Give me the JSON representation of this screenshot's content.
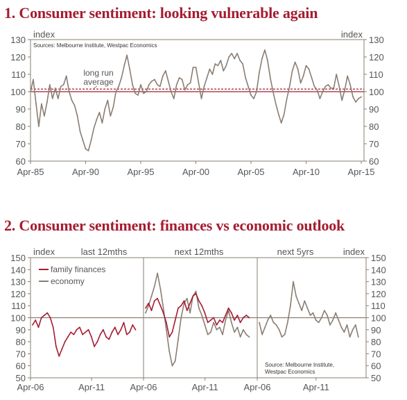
{
  "chart_data": [
    {
      "type": "line",
      "title": "1. Consumer sentiment: looking vulnerable again",
      "ylabel_left": "index",
      "ylabel_right": "index",
      "source": "Sources: Melbourne Institute, Westpac Economics",
      "ylim": [
        60,
        130
      ],
      "yticks": [
        60,
        70,
        80,
        90,
        100,
        110,
        120,
        130
      ],
      "xlim": [
        1985.25,
        2015.5
      ],
      "xticks": [
        {
          "x": 1985.25,
          "label": "Apr-85"
        },
        {
          "x": 1990.25,
          "label": "Apr-90"
        },
        {
          "x": 1995.25,
          "label": "Apr-95"
        },
        {
          "x": 2000.25,
          "label": "Apr-00"
        },
        {
          "x": 2005.25,
          "label": "Apr-05"
        },
        {
          "x": 2010.25,
          "label": "Apr-10"
        },
        {
          "x": 2015.25,
          "label": "Apr-15"
        }
      ],
      "annotation": "long run average",
      "annotation_lines": [
        "long run",
        "average"
      ],
      "reference_lines": [
        {
          "y": 100,
          "style": "solid",
          "color": "#a51c30"
        },
        {
          "y": 101.5,
          "style": "dashed",
          "color": "#a51c30"
        }
      ],
      "grid": false,
      "series": [
        {
          "color": "#8a7d72",
          "x": [
            1985.25,
            1985.5,
            1985.75,
            1986.0,
            1986.25,
            1986.5,
            1986.75,
            1987.0,
            1987.25,
            1987.5,
            1987.75,
            1988.0,
            1988.25,
            1988.5,
            1988.75,
            1989.0,
            1989.25,
            1989.5,
            1989.75,
            1990.0,
            1990.25,
            1990.5,
            1990.75,
            1991.0,
            1991.25,
            1991.5,
            1991.75,
            1992.0,
            1992.25,
            1992.5,
            1992.75,
            1993.0,
            1993.25,
            1993.5,
            1993.75,
            1994.0,
            1994.25,
            1994.5,
            1994.75,
            1995.0,
            1995.25,
            1995.5,
            1995.75,
            1996.0,
            1996.25,
            1996.5,
            1996.75,
            1997.0,
            1997.25,
            1997.5,
            1997.75,
            1998.0,
            1998.25,
            1998.5,
            1998.75,
            1999.0,
            1999.25,
            1999.5,
            1999.75,
            2000.0,
            2000.25,
            2000.5,
            2000.75,
            2001.0,
            2001.25,
            2001.5,
            2001.75,
            2002.0,
            2002.25,
            2002.5,
            2002.75,
            2003.0,
            2003.25,
            2003.5,
            2003.75,
            2004.0,
            2004.25,
            2004.5,
            2004.75,
            2005.0,
            2005.25,
            2005.5,
            2005.75,
            2006.0,
            2006.25,
            2006.5,
            2006.75,
            2007.0,
            2007.25,
            2007.5,
            2007.75,
            2008.0,
            2008.25,
            2008.5,
            2008.75,
            2009.0,
            2009.25,
            2009.5,
            2009.75,
            2010.0,
            2010.25,
            2010.5,
            2010.75,
            2011.0,
            2011.25,
            2011.5,
            2011.75,
            2012.0,
            2012.25,
            2012.5,
            2012.75,
            2013.0,
            2013.25,
            2013.5,
            2013.75,
            2014.0,
            2014.25,
            2014.5,
            2014.75,
            2015.0,
            2015.25
          ],
          "values": [
            100,
            107,
            93,
            80,
            93,
            86,
            94,
            104,
            96,
            102,
            96,
            103,
            104,
            109,
            100,
            95,
            92,
            86,
            77,
            72,
            67,
            66,
            72,
            79,
            84,
            88,
            82,
            90,
            95,
            86,
            91,
            100,
            103,
            108,
            115,
            121,
            113,
            104,
            99,
            98,
            104,
            99,
            100,
            104,
            106,
            107,
            104,
            103,
            109,
            112,
            106,
            100,
            96,
            104,
            108,
            107,
            101,
            104,
            105,
            114,
            114,
            105,
            96,
            103,
            108,
            113,
            110,
            116,
            115,
            118,
            112,
            115,
            120,
            122,
            119,
            122,
            118,
            116,
            108,
            103,
            98,
            96,
            100,
            111,
            119,
            124,
            118,
            108,
            100,
            93,
            87,
            82,
            87,
            96,
            103,
            112,
            117,
            113,
            105,
            109,
            115,
            113,
            108,
            103,
            101,
            96,
            100,
            103,
            104,
            102,
            102,
            110,
            103,
            95,
            101,
            109,
            104,
            97,
            94,
            96,
            97
          ]
        }
      ]
    },
    {
      "type": "line",
      "title": "2. Consumer sentiment: finances vs economic outlook",
      "ylabel_left": "index",
      "ylabel_right": "index",
      "source": "Source: Melbourne Institute, Westpac Economics",
      "source_lines": [
        "Source: Melbourne Institute,",
        "Westpac Economics"
      ],
      "ylim": [
        50,
        150
      ],
      "yticks": [
        50,
        60,
        70,
        80,
        90,
        100,
        110,
        120,
        130,
        140,
        150
      ],
      "reference_lines": [
        {
          "y": 100,
          "style": "solid",
          "color": "#8a7d72"
        }
      ],
      "grid": false,
      "panels": [
        {
          "label": "last 12mths",
          "xlim": [
            2006.25,
            2015.5
          ],
          "xticks": [
            {
              "x": 2006.25,
              "label": "Apr-06"
            },
            {
              "x": 2011.25,
              "label": "Apr-11"
            }
          ],
          "series": [
            {
              "name": "family finances",
              "color": "#a51c30",
              "x": [
                2006.25,
                2006.5,
                2006.75,
                2007.0,
                2007.25,
                2007.5,
                2007.75,
                2008.0,
                2008.25,
                2008.5,
                2008.75,
                2009.0,
                2009.25,
                2009.5,
                2009.75,
                2010.0,
                2010.25,
                2010.5,
                2010.75,
                2011.0,
                2011.25,
                2011.5,
                2011.75,
                2012.0,
                2012.25,
                2012.5,
                2012.75,
                2013.0,
                2013.25,
                2013.5,
                2013.75,
                2014.0,
                2014.25,
                2014.5,
                2014.75,
                2015.0
              ],
              "values": [
                94,
                98,
                92,
                100,
                102,
                104,
                100,
                92,
                76,
                68,
                74,
                80,
                84,
                88,
                86,
                90,
                92,
                86,
                88,
                90,
                84,
                76,
                80,
                86,
                90,
                84,
                82,
                88,
                92,
                86,
                90,
                96,
                86,
                88,
                94,
                90
              ]
            }
          ]
        },
        {
          "label": "next 12mths",
          "xlim": [
            2006.25,
            2015.5
          ],
          "xticks": [
            {
              "x": 2006.25,
              "label": "Apr-06"
            },
            {
              "x": 2011.25,
              "label": "Apr-11"
            }
          ],
          "series": [
            {
              "name": "family finances",
              "color": "#a51c30",
              "x": [
                2006.25,
                2006.5,
                2006.75,
                2007.0,
                2007.25,
                2007.5,
                2007.75,
                2008.0,
                2008.25,
                2008.5,
                2008.75,
                2009.0,
                2009.25,
                2009.5,
                2009.75,
                2010.0,
                2010.25,
                2010.5,
                2010.75,
                2011.0,
                2011.25,
                2011.5,
                2011.75,
                2012.0,
                2012.25,
                2012.5,
                2012.75,
                2013.0,
                2013.25,
                2013.5,
                2013.75,
                2014.0,
                2014.25,
                2014.5,
                2014.75,
                2015.0
              ],
              "values": [
                108,
                112,
                106,
                114,
                116,
                110,
                104,
                96,
                84,
                88,
                98,
                108,
                110,
                114,
                106,
                112,
                118,
                120,
                114,
                110,
                104,
                96,
                98,
                100,
                94,
                98,
                96,
                102,
                108,
                104,
                98,
                102,
                96,
                100,
                102,
                100
              ]
            },
            {
              "name": "economy",
              "color": "#8a7d72",
              "x": [
                2006.25,
                2006.5,
                2006.75,
                2007.0,
                2007.25,
                2007.5,
                2007.75,
                2008.0,
                2008.25,
                2008.5,
                2008.75,
                2009.0,
                2009.25,
                2009.5,
                2009.75,
                2010.0,
                2010.25,
                2010.5,
                2010.75,
                2011.0,
                2011.25,
                2011.5,
                2011.75,
                2012.0,
                2012.25,
                2012.5,
                2012.75,
                2013.0,
                2013.25,
                2013.5,
                2013.75,
                2014.0,
                2014.25,
                2014.5,
                2014.75,
                2015.0
              ],
              "values": [
                104,
                110,
                118,
                126,
                137,
                124,
                108,
                90,
                72,
                60,
                64,
                82,
                100,
                112,
                116,
                104,
                118,
                122,
                108,
                102,
                94,
                86,
                88,
                96,
                90,
                92,
                86,
                98,
                106,
                96,
                88,
                92,
                84,
                90,
                86,
                84
              ]
            }
          ]
        },
        {
          "label": "next 5yrs",
          "xlim": [
            2006.25,
            2015.5
          ],
          "xticks": [
            {
              "x": 2006.25,
              "label": "Apr-06"
            },
            {
              "x": 2011.25,
              "label": "Apr-11"
            }
          ],
          "series": [
            {
              "name": "economy",
              "color": "#8a7d72",
              "x": [
                2006.25,
                2006.5,
                2006.75,
                2007.0,
                2007.25,
                2007.5,
                2007.75,
                2008.0,
                2008.25,
                2008.5,
                2008.75,
                2009.0,
                2009.25,
                2009.5,
                2009.75,
                2010.0,
                2010.25,
                2010.5,
                2010.75,
                2011.0,
                2011.25,
                2011.5,
                2011.75,
                2012.0,
                2012.25,
                2012.5,
                2012.75,
                2013.0,
                2013.25,
                2013.5,
                2013.75,
                2014.0,
                2014.25,
                2014.5,
                2014.75,
                2015.0
              ],
              "values": [
                96,
                86,
                92,
                98,
                102,
                96,
                94,
                90,
                84,
                86,
                96,
                110,
                130,
                118,
                112,
                106,
                114,
                108,
                102,
                104,
                98,
                96,
                100,
                106,
                102,
                94,
                98,
                104,
                98,
                92,
                88,
                94,
                84,
                90,
                94,
                84
              ]
            }
          ]
        }
      ],
      "legend": [
        "family finances",
        "economy"
      ],
      "legend_location": "top-left"
    }
  ]
}
